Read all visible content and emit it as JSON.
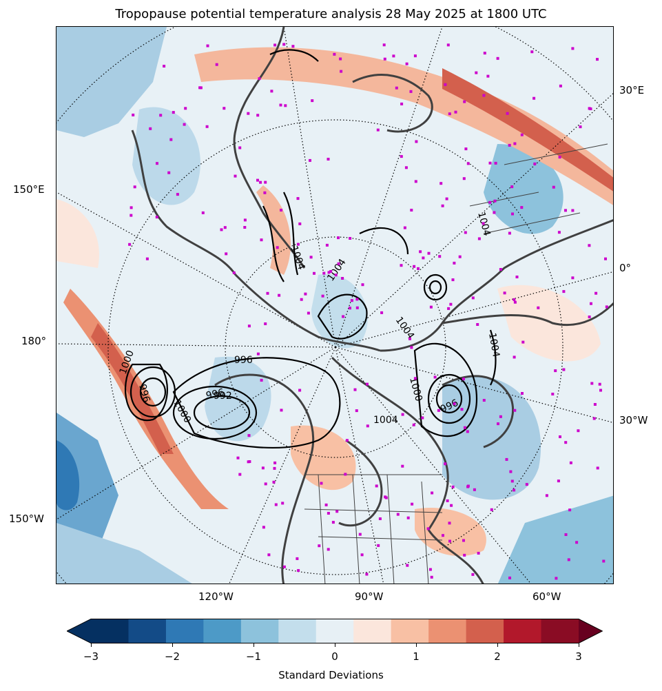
{
  "title": "Tropopause potential temperature analysis 28 May 2025 at 1800 UTC",
  "map": {
    "projection": "north-polar-stereographic",
    "left_labels": [
      "150°E",
      "180°",
      "150°W"
    ],
    "right_labels": [
      "30°E",
      "0°",
      "30°W"
    ],
    "bottom_labels": [
      "120°W",
      "90°W",
      "60°W"
    ],
    "isobar_labels": [
      "1004",
      "1004",
      "1004",
      "1004",
      "1000",
      "1000",
      "1000",
      "996",
      "996",
      "996",
      "992",
      "1004",
      "1004",
      "996"
    ],
    "station_marker_color": "#cc00cc",
    "coastline_color": "#404040"
  },
  "colorbar": {
    "colors": [
      "#67001f",
      "#053061",
      "#134b87",
      "#2f79b5",
      "#4d9ac7",
      "#8dc2dc",
      "#c3deec",
      "#e7f0f5",
      "#fbe6dc",
      "#f8c0a4",
      "#eb9172",
      "#d3604d",
      "#b2182b",
      "#8a0c24",
      "#67001f"
    ],
    "ticks": [
      "−3",
      "−2",
      "−1",
      "0",
      "1",
      "2",
      "3"
    ],
    "label": "Standard Deviations"
  }
}
